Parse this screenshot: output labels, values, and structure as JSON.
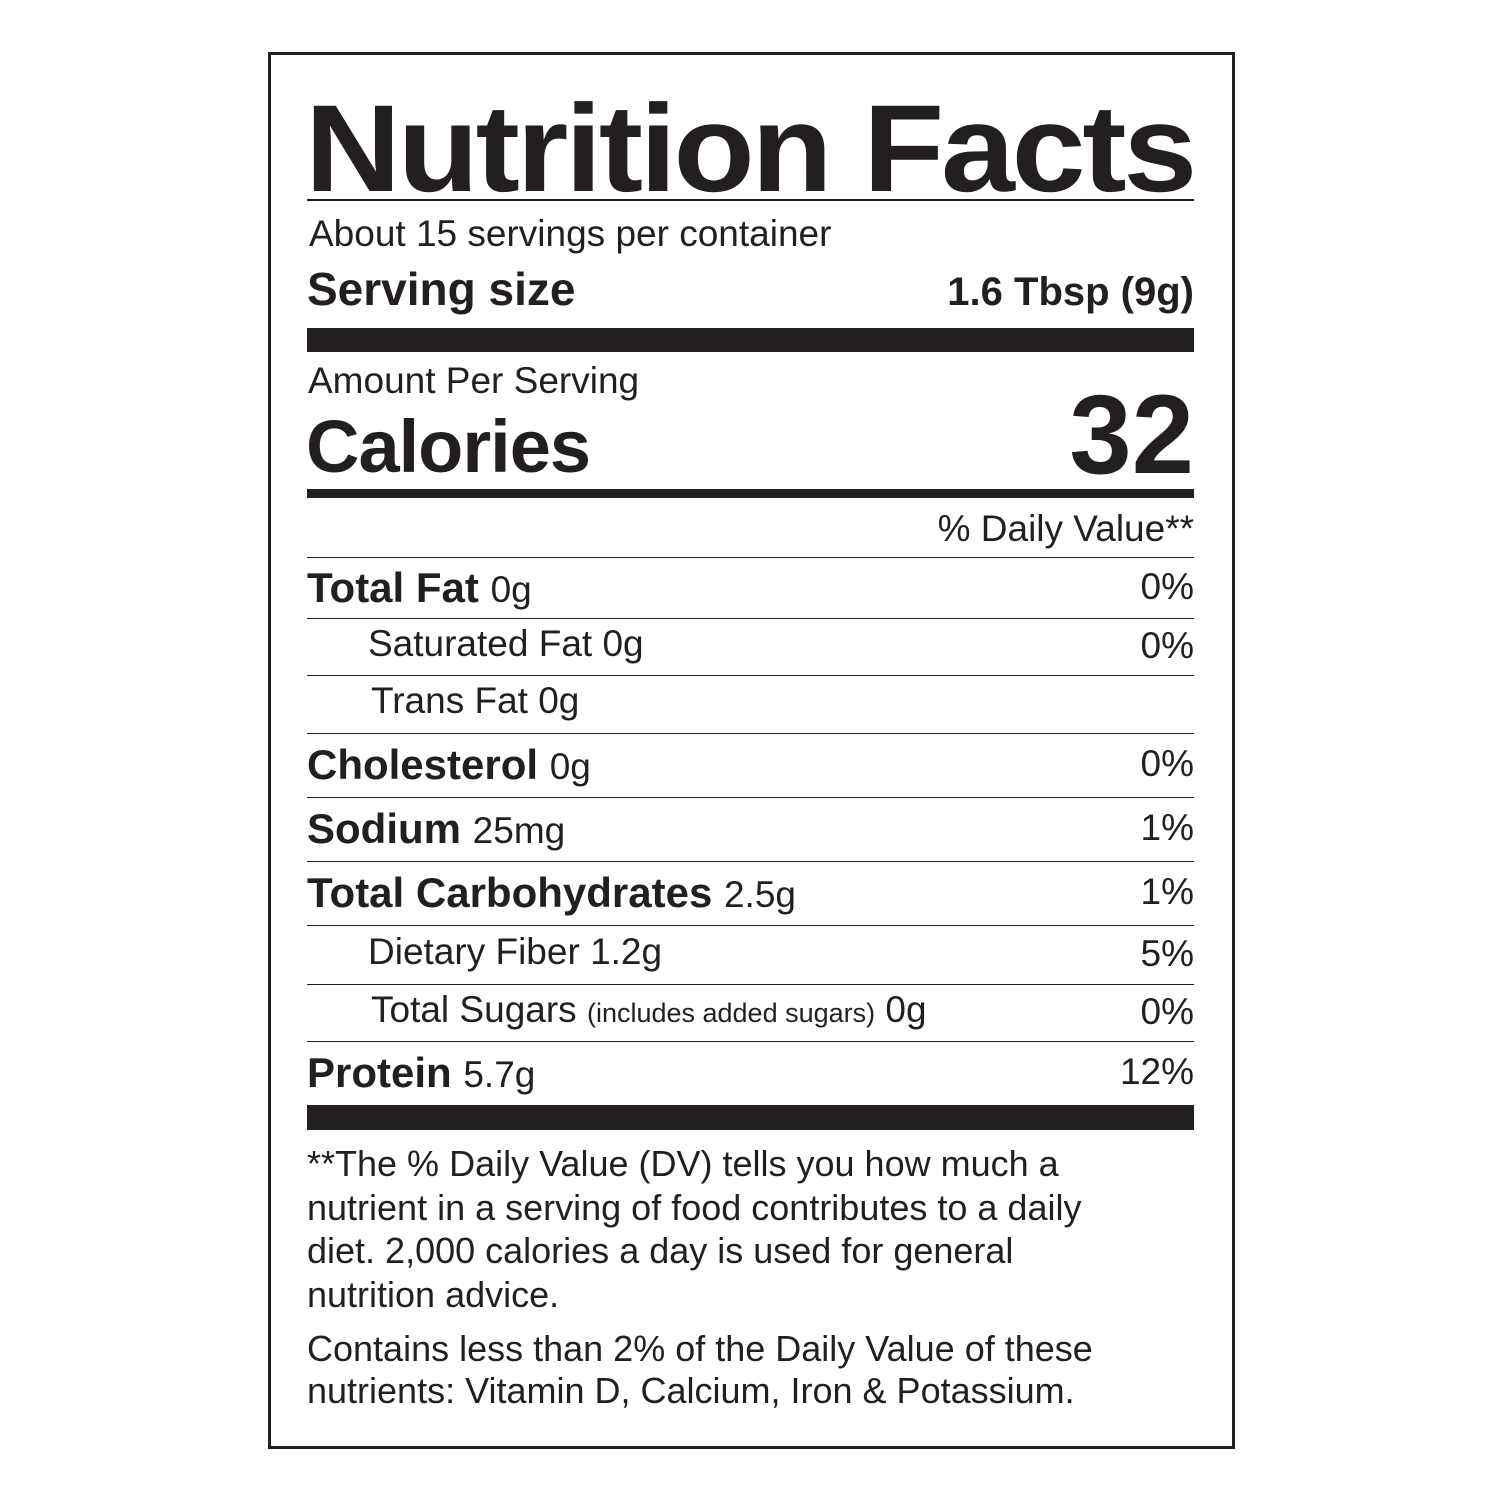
{
  "title": "Nutrition Facts",
  "servings_per_container": "About 15 servings per container",
  "serving_size": {
    "label": "Serving size",
    "value": "1.6 Tbsp (9g)"
  },
  "amount_per_serving": "Amount Per Serving",
  "calories": {
    "label": "Calories",
    "value": "32"
  },
  "daily_value_header": "% Daily Value**",
  "nutrients": [
    {
      "name": "Total Fat",
      "amount": "0g",
      "dv": "0%",
      "bold": true
    },
    {
      "name": "Saturated Fat",
      "amount": "0g",
      "dv": "0%",
      "bold": false
    },
    {
      "name": "Trans Fat",
      "amount": "0g",
      "dv": "",
      "bold": false
    },
    {
      "name": "Cholesterol",
      "amount": "0g",
      "dv": "0%",
      "bold": true
    },
    {
      "name": "Sodium",
      "amount": "25mg",
      "dv": "1%",
      "bold": true
    },
    {
      "name": "Total Carbohydrates",
      "amount": "2.5g",
      "dv": "1%",
      "bold": true
    },
    {
      "name": "Dietary Fiber",
      "amount": "1.2g",
      "dv": "5%",
      "bold": false
    },
    {
      "name": "Total Sugars",
      "note": "(includes added sugars)",
      "amount": "0g",
      "dv": "0%",
      "bold": false
    },
    {
      "name": "Protein",
      "amount": "5.7g",
      "dv": "12%",
      "bold": true
    }
  ],
  "footnote": [
    "**The % Daily Value (DV) tells you how much a",
    "nutrient in a serving of food contributes to a daily",
    "diet. 2,000 calories a day is used for general",
    "nutrition advice."
  ],
  "minor_nutrients": [
    "Contains less than 2% of the Daily Value of these",
    "nutrients: Vitamin D, Calcium, Iron & Potassium."
  ]
}
